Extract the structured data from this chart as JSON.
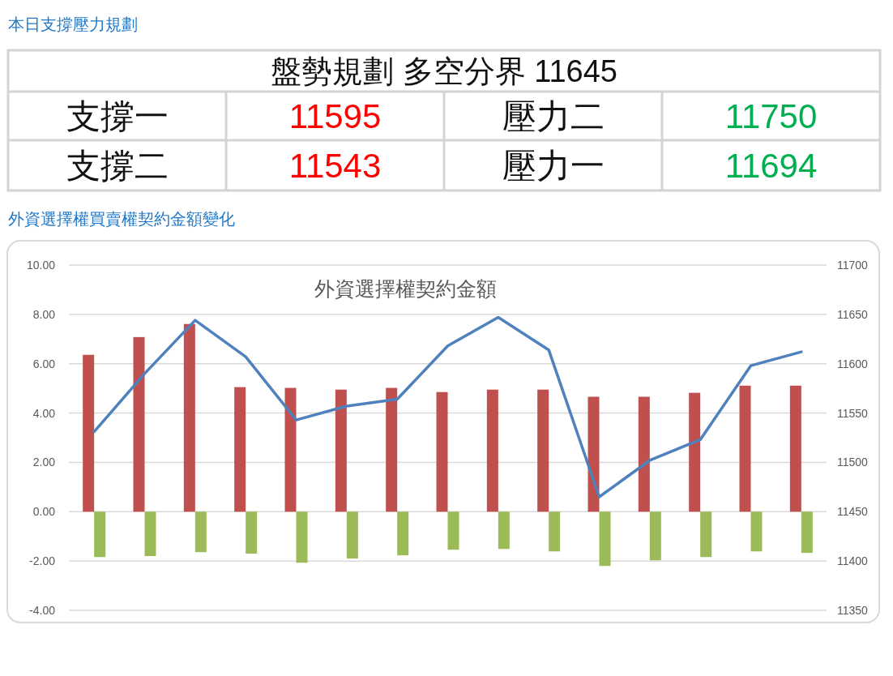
{
  "chart_data": [
    {
      "type": "other",
      "title": "本日支撐壓力規劃",
      "annotations": [
        "盤勢規劃 多空分界 11645",
        "支撐一",
        "11595",
        "壓力二",
        "11750",
        "支撐二",
        "11543",
        "壓力一",
        "11694"
      ]
    },
    {
      "type": "bar",
      "title": "外資選擇權買賣權契約金額變化",
      "subtitle": "外資選擇權契約金額",
      "categories": [
        null,
        null,
        null,
        null,
        null,
        null,
        null,
        null,
        null,
        null,
        null,
        null,
        null,
        null,
        null
      ],
      "series": [
        {
          "type": "bar",
          "color": "#c0504d",
          "values": [
            6.36,
            7.08,
            7.61,
            5.05,
            5.02,
            4.95,
            5.02,
            4.85,
            4.95,
            4.95,
            4.66,
            4.66,
            4.82,
            5.11,
            5.11
          ]
        },
        {
          "type": "bar",
          "color": "#9bbb59",
          "values": [
            -1.84,
            -1.8,
            -1.64,
            -1.7,
            -2.07,
            -1.9,
            -1.77,
            -1.54,
            -1.51,
            -1.61,
            -2.2,
            -1.97,
            -1.84,
            -1.61,
            -1.67
          ]
        },
        {
          "type": "line",
          "axis": "y2",
          "color": "#4f81bd",
          "values": [
            11531,
            11590,
            11644,
            11607,
            11543,
            11557,
            11564,
            11618,
            11647,
            11614,
            11465,
            11502,
            11523,
            11598,
            11612
          ]
        }
      ],
      "ylim": [
        -4,
        10
      ],
      "yticks": [
        {
          "value": -4,
          "label": "-4.00"
        },
        {
          "value": -2,
          "label": "-2.00"
        },
        {
          "value": 0,
          "label": "0.00"
        },
        {
          "value": 2,
          "label": "2.00"
        },
        {
          "value": 4,
          "label": "4.00"
        },
        {
          "value": 6,
          "label": "6.00"
        },
        {
          "value": 8,
          "label": "8.00"
        },
        {
          "value": 10,
          "label": "10.00"
        }
      ],
      "y2lim": [
        11350,
        11700
      ],
      "y2ticks": [
        11350,
        11400,
        11450,
        11500,
        11550,
        11600,
        11650,
        11700
      ],
      "grid": "y"
    }
  ]
}
